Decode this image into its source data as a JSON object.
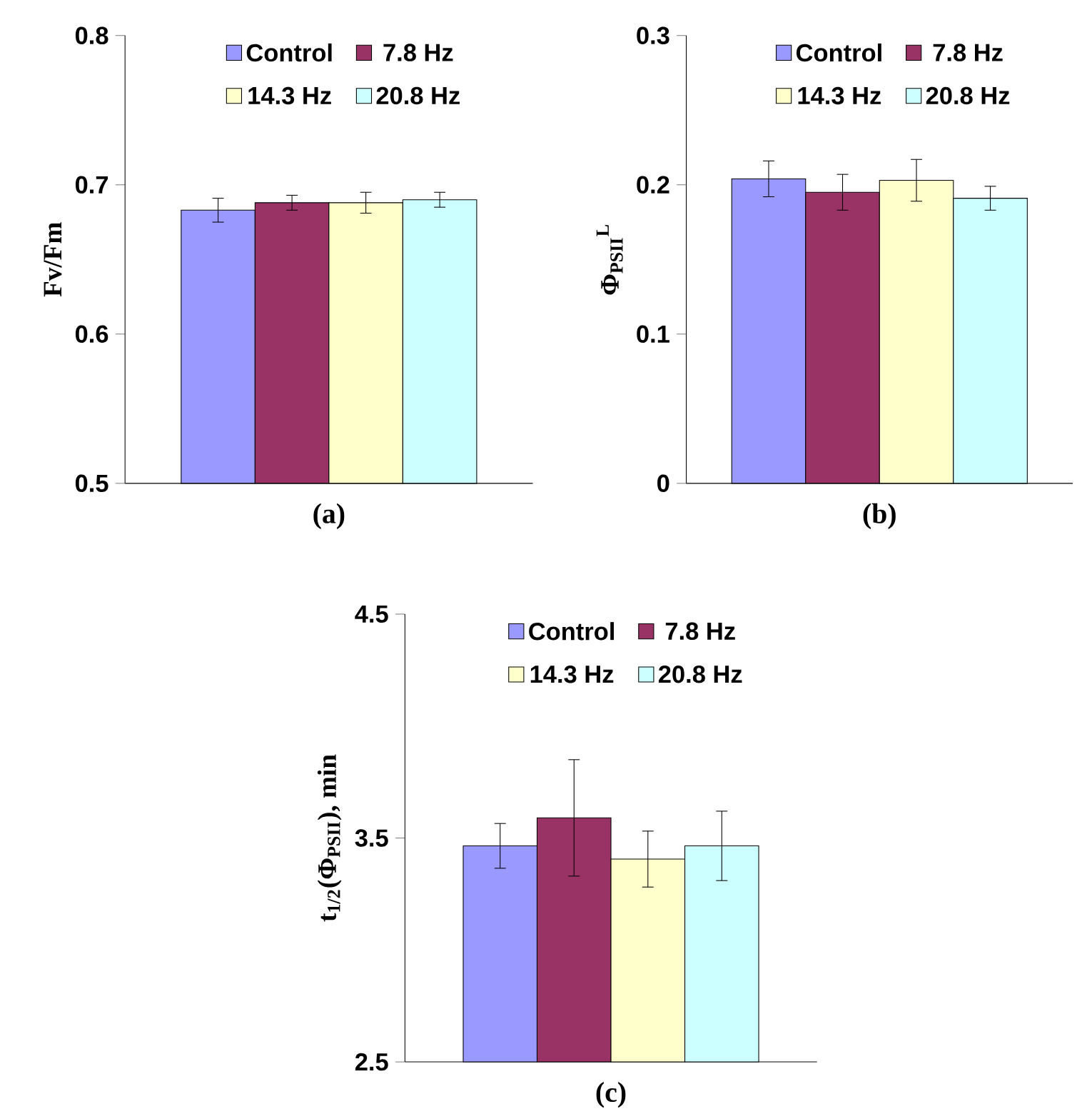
{
  "chart_data": [
    {
      "type": "bar",
      "xlabel": "(a)",
      "ylabel": "Fv/Fm",
      "categories": [
        null
      ],
      "ylim": [
        0.5,
        0.8
      ],
      "yticks": [
        0.5,
        0.6,
        0.7,
        0.8
      ],
      "legend": "top",
      "series": [
        {
          "name": "Control",
          "color": "#9999ff",
          "values": [
            0.683
          ],
          "errors": [
            0.008
          ]
        },
        {
          "name": "7.8 Hz",
          "color": "#993366",
          "values": [
            0.688
          ],
          "errors": [
            0.005
          ]
        },
        {
          "name": "14.3 Hz",
          "color": "#ffffcc",
          "values": [
            0.688
          ],
          "errors": [
            0.007
          ]
        },
        {
          "name": "20.8 Hz",
          "color": "#ccffff",
          "values": [
            0.69
          ],
          "errors": [
            0.005
          ]
        }
      ]
    },
    {
      "type": "bar",
      "xlabel": "(b)",
      "ylabel": "Φ$_{PSII}$$^{L}$",
      "categories": [
        null
      ],
      "ylim": [
        0,
        0.3
      ],
      "yticks": [
        0,
        0.1,
        0.2,
        0.3
      ],
      "legend": "top",
      "series": [
        {
          "name": "Control",
          "color": "#9999ff",
          "values": [
            0.204
          ],
          "errors": [
            0.012
          ]
        },
        {
          "name": "7.8 Hz",
          "color": "#993366",
          "values": [
            0.195
          ],
          "errors": [
            0.012
          ]
        },
        {
          "name": "14.3 Hz",
          "color": "#ffffcc",
          "values": [
            0.203
          ],
          "errors": [
            0.014
          ]
        },
        {
          "name": "20.8 Hz",
          "color": "#ccffff",
          "values": [
            0.191
          ],
          "errors": [
            0.008
          ]
        }
      ]
    },
    {
      "type": "bar",
      "xlabel": "(c)",
      "ylabel": "t$_{1/2}$(Φ$_{PSII}$), min",
      "categories": [
        null
      ],
      "ylim": [
        2.5,
        4.5
      ],
      "yticks": [
        2.5,
        3.5,
        4.5
      ],
      "legend": "top",
      "series": [
        {
          "name": "Control",
          "color": "#9999ff",
          "values": [
            3.465
          ],
          "errors": [
            0.1
          ]
        },
        {
          "name": "7.8 Hz",
          "color": "#993366",
          "values": [
            3.59
          ],
          "errors": [
            0.26
          ]
        },
        {
          "name": "14.3 Hz",
          "color": "#ffffcc",
          "values": [
            3.406
          ],
          "errors": [
            0.125
          ]
        },
        {
          "name": "20.8 Hz",
          "color": "#ccffff",
          "values": [
            3.465
          ],
          "errors": [
            0.155
          ]
        }
      ]
    }
  ]
}
